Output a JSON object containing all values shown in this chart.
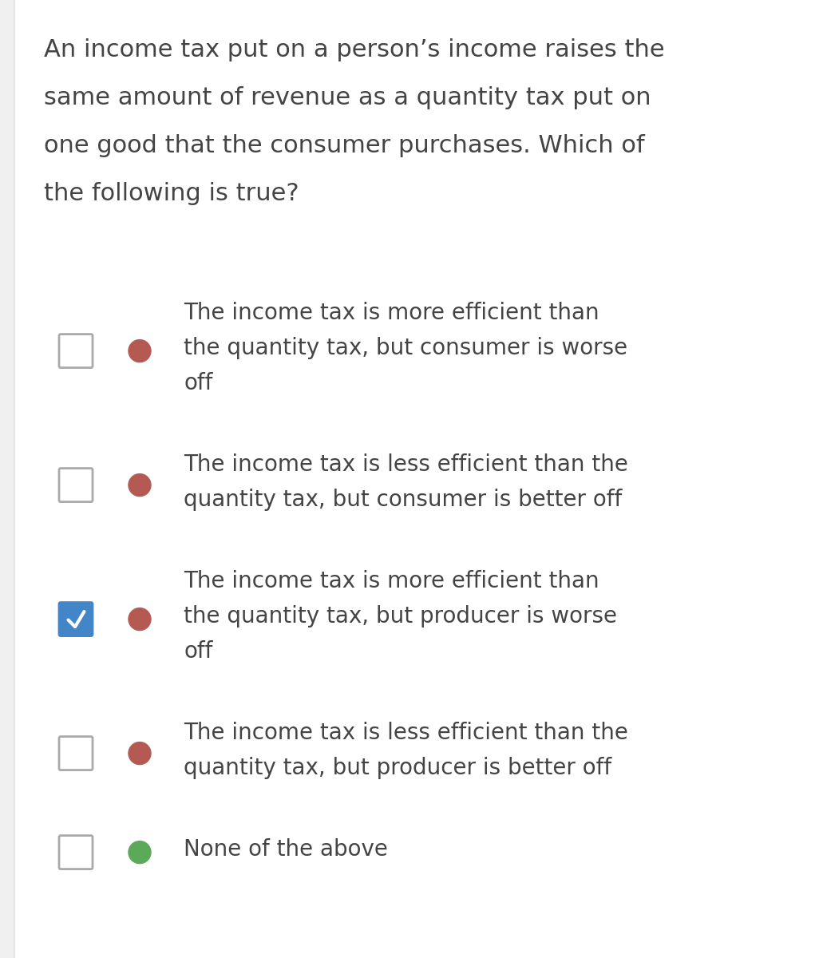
{
  "background_color": "#f0f0f0",
  "card_color": "#ffffff",
  "question_lines": [
    "An income tax put on a person’s income raises the",
    "same amount of revenue as a quantity tax put on",
    "one good that the consumer purchases. Which of",
    "the following is true?"
  ],
  "options": [
    {
      "lines": [
        "The income tax is more efficient than",
        "the quantity tax, but consumer is worse",
        "off"
      ],
      "checked": false,
      "dot_color": "#b55a52",
      "checkbox_checked": false
    },
    {
      "lines": [
        "The income tax is less efficient than the",
        "quantity tax, but consumer is better off"
      ],
      "checked": false,
      "dot_color": "#b55a52",
      "checkbox_checked": false
    },
    {
      "lines": [
        "The income tax is more efficient than",
        "the quantity tax, but producer is worse",
        "off"
      ],
      "checked": true,
      "dot_color": "#b55a52",
      "checkbox_checked": true
    },
    {
      "lines": [
        "The income tax is less efficient than the",
        "quantity tax, but producer is better off"
      ],
      "checked": false,
      "dot_color": "#b55a52",
      "checkbox_checked": false
    },
    {
      "lines": [
        "None of the above"
      ],
      "checked": false,
      "dot_color": "#5aaa5a",
      "checkbox_checked": false
    }
  ],
  "question_fontsize": 22,
  "option_fontsize": 20,
  "text_color": "#444444",
  "checkbox_border_color": "#aaaaaa",
  "checkbox_fill_unchecked": "#ffffff",
  "checkbox_fill_checked": "#4285c8",
  "checkbox_border_checked": "#4285c8",
  "checkmark_color": "#ffffff"
}
